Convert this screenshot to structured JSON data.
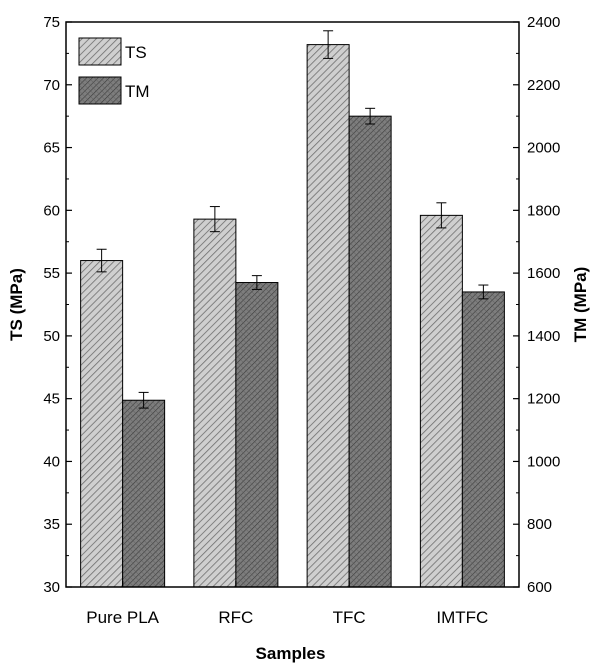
{
  "chart_data": {
    "type": "bar",
    "title": "",
    "xlabel": "Samples",
    "ylabel_left": "TS (MPa)",
    "ylabel_right": "TM (MPa)",
    "categories": [
      "Pure PLA",
      "RFC",
      "TFC",
      "IMTFC"
    ],
    "ylim_left": [
      30,
      75
    ],
    "ylim_right": [
      600,
      2400
    ],
    "yticks_left": [
      "30",
      "35",
      "40",
      "45",
      "50",
      "55",
      "60",
      "65",
      "70",
      "75"
    ],
    "yticks_right": [
      "600",
      "800",
      "1000",
      "1200",
      "1400",
      "1600",
      "1800",
      "2000",
      "2200",
      "2400"
    ],
    "series": [
      {
        "name": "TS",
        "axis": "left",
        "values": [
          56.0,
          59.3,
          73.2,
          59.6
        ],
        "errors": [
          0.9,
          1.0,
          1.1,
          1.0
        ],
        "pattern": "light-hatch"
      },
      {
        "name": "TM",
        "axis": "right",
        "values": [
          1195,
          1570,
          2100,
          1540
        ],
        "errors": [
          25,
          22,
          25,
          22
        ],
        "pattern": "dark-crosshatch"
      }
    ],
    "legend_position": "top-left",
    "grid": false
  }
}
